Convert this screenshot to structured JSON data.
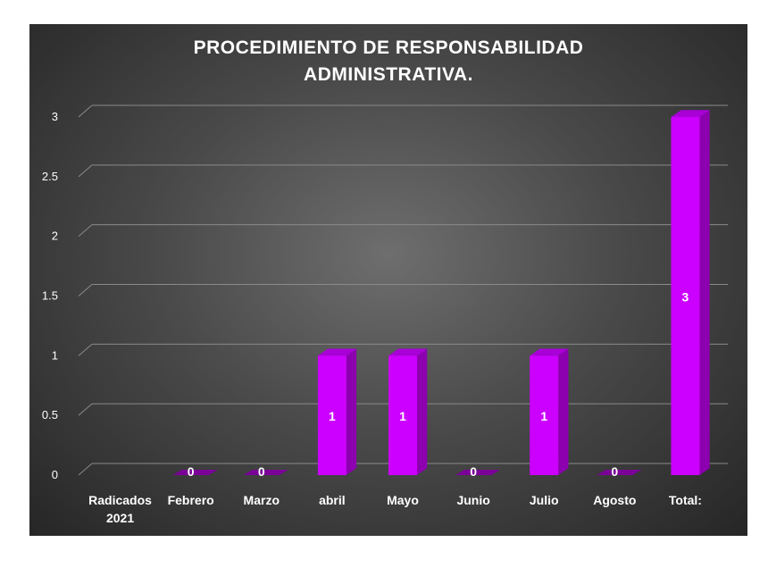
{
  "chart_data": {
    "type": "bar",
    "title_lines": [
      "PROCEDIMIENTO  DE RESPONSABILIDAD",
      "ADMINISTRATIVA."
    ],
    "categories": [
      [
        "Radicados",
        "2021"
      ],
      [
        "Febrero"
      ],
      [
        "Marzo"
      ],
      [
        "abril"
      ],
      [
        "Mayo"
      ],
      [
        "Junio"
      ],
      [
        "Julio"
      ],
      [
        "Agosto"
      ],
      [
        "Total:"
      ]
    ],
    "values": [
      null,
      0,
      0,
      1,
      1,
      0,
      1,
      0,
      3
    ],
    "data_labels": [
      "",
      "0",
      "0",
      "1",
      "1",
      "0",
      "1",
      "0",
      "3"
    ],
    "yticks": [
      "0",
      "0.5",
      "1",
      "1.5",
      "2",
      "2.5",
      "3"
    ],
    "ylim": [
      0,
      3
    ],
    "grid": true,
    "bar_color": "#cc00ff",
    "bar_side_color": "#8c00b0",
    "bar_top_color": "#a800d6"
  }
}
